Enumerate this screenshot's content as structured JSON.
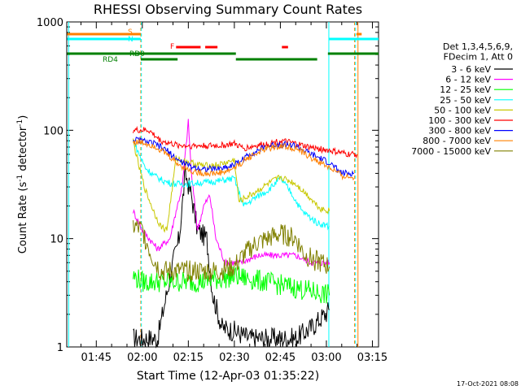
{
  "chart_data": {
    "type": "line",
    "title": "RHESSI Observing Summary Count Rates",
    "xlabel": "Start Time (12-Apr-03 01:35:22)",
    "ylabel_main": "Count Rate (s",
    "ylabel_sup1": "-1",
    "ylabel_mid": " detector",
    "ylabel_sup2": "-1",
    "ylabel_end": ")",
    "ylim": [
      1,
      1000
    ],
    "yscale": "log",
    "xlim_minutes": [
      95.37,
      197
    ],
    "x_ticks": [
      {
        "minute": 105,
        "label": "01:45"
      },
      {
        "minute": 120,
        "label": "02:00"
      },
      {
        "minute": 135,
        "label": "02:15"
      },
      {
        "minute": 150,
        "label": "02:30"
      },
      {
        "minute": 165,
        "label": "02:45"
      },
      {
        "minute": 180,
        "label": "03:00"
      },
      {
        "minute": 195,
        "label": "03:15"
      }
    ],
    "y_ticks": [
      {
        "value": 1,
        "label": "1"
      },
      {
        "value": 10,
        "label": "10"
      },
      {
        "value": 100,
        "label": "100"
      },
      {
        "value": 1000,
        "label": "1000"
      }
    ],
    "legend_header": [
      "Det 1,3,4,5,6,9,",
      "FDecim 1, Att 0"
    ],
    "legend_position": "right",
    "flags": [
      {
        "label": "S",
        "color": "#ff8000"
      },
      {
        "label": "N",
        "color": "#00ffff"
      },
      {
        "label": "F",
        "color": "#ff0000"
      },
      {
        "label": "RD0",
        "color": "#008000"
      },
      {
        "label": "RD4",
        "color": "#008000"
      }
    ],
    "series": [
      {
        "name": "3 - 6 keV",
        "color": "#000000",
        "values": [
          [
            117,
            1.2
          ],
          [
            125,
            1.2
          ],
          [
            130,
            6
          ],
          [
            132,
            10
          ],
          [
            134,
            40
          ],
          [
            136,
            25
          ],
          [
            138,
            12
          ],
          [
            141,
            10
          ],
          [
            143,
            3
          ],
          [
            146,
            1.5
          ],
          [
            150,
            1.4
          ],
          [
            155,
            1.2
          ],
          [
            160,
            1.2
          ],
          [
            165,
            1.2
          ],
          [
            170,
            1.2
          ],
          [
            175,
            1.5
          ],
          [
            181,
            2.2
          ]
        ]
      },
      {
        "name": "6 - 12 keV",
        "color": "#ff00ff",
        "values": [
          [
            117,
            18
          ],
          [
            120,
            12
          ],
          [
            125,
            8
          ],
          [
            129,
            10
          ],
          [
            131,
            18
          ],
          [
            133,
            30
          ],
          [
            135,
            120
          ],
          [
            136,
            40
          ],
          [
            138,
            12
          ],
          [
            140,
            20
          ],
          [
            142,
            25
          ],
          [
            144,
            10
          ],
          [
            147,
            6
          ],
          [
            152,
            6
          ],
          [
            158,
            7
          ],
          [
            165,
            7
          ],
          [
            170,
            7
          ],
          [
            175,
            6
          ],
          [
            181,
            6
          ]
        ]
      },
      {
        "name": "12 - 25 keV",
        "color": "#00ff00",
        "values": [
          [
            117,
            4.5
          ],
          [
            120,
            4
          ],
          [
            125,
            4
          ],
          [
            130,
            4
          ],
          [
            140,
            4
          ],
          [
            150,
            4.5
          ],
          [
            160,
            4
          ],
          [
            170,
            3.5
          ],
          [
            181,
            3
          ]
        ]
      },
      {
        "name": "25 - 50 keV",
        "color": "#00ffff",
        "values": [
          [
            117,
            80
          ],
          [
            119,
            60
          ],
          [
            121,
            45
          ],
          [
            124,
            38
          ],
          [
            127,
            34
          ],
          [
            130,
            32
          ],
          [
            135,
            32
          ],
          [
            140,
            33
          ],
          [
            145,
            34
          ],
          [
            150,
            36
          ],
          [
            153,
            20
          ],
          [
            157,
            24
          ],
          [
            161,
            28
          ],
          [
            165,
            36
          ],
          [
            168,
            28
          ],
          [
            172,
            18
          ],
          [
            177,
            14
          ],
          [
            181,
            13
          ]
        ]
      },
      {
        "name": "50 - 100 keV",
        "color": "#c8c800",
        "values": [
          [
            117,
            80
          ],
          [
            119,
            45
          ],
          [
            121,
            28
          ],
          [
            124,
            17
          ],
          [
            126,
            13
          ],
          [
            128,
            12
          ],
          [
            131,
            55
          ],
          [
            136,
            50
          ],
          [
            140,
            47
          ],
          [
            145,
            48
          ],
          [
            150,
            53
          ],
          [
            151.5,
            22
          ],
          [
            156,
            26
          ],
          [
            161,
            32
          ],
          [
            165,
            37
          ],
          [
            170,
            32
          ],
          [
            174,
            25
          ],
          [
            178,
            19
          ],
          [
            181,
            18
          ]
        ]
      },
      {
        "name": "100 - 300 keV",
        "color": "#ff0000",
        "values": [
          [
            117,
            100
          ],
          [
            122,
            100
          ],
          [
            126,
            80
          ],
          [
            131,
            73
          ],
          [
            135,
            72
          ],
          [
            140,
            72
          ],
          [
            145,
            72
          ],
          [
            150,
            75
          ],
          [
            153,
            68
          ],
          [
            157,
            72
          ],
          [
            161,
            75
          ],
          [
            165,
            80
          ],
          [
            170,
            75
          ],
          [
            174,
            70
          ],
          [
            181,
            65
          ],
          [
            187,
            60
          ],
          [
            190,
            60
          ]
        ]
      },
      {
        "name": "300 - 800 keV",
        "color": "#0000ff",
        "values": [
          [
            117,
            82
          ],
          [
            120,
            80
          ],
          [
            124,
            75
          ],
          [
            128,
            65
          ],
          [
            132,
            52
          ],
          [
            136,
            46
          ],
          [
            140,
            44
          ],
          [
            144,
            44
          ],
          [
            148,
            46
          ],
          [
            151,
            50
          ],
          [
            155,
            60
          ],
          [
            160,
            70
          ],
          [
            165,
            75
          ],
          [
            170,
            72
          ],
          [
            174,
            62
          ],
          [
            181,
            50
          ],
          [
            185,
            40
          ],
          [
            189,
            40
          ]
        ]
      },
      {
        "name": "800 - 7000 keV",
        "color": "#ff8000",
        "values": [
          [
            117,
            78
          ],
          [
            120,
            77
          ],
          [
            124,
            72
          ],
          [
            128,
            60
          ],
          [
            132,
            48
          ],
          [
            136,
            42
          ],
          [
            140,
            40
          ],
          [
            144,
            40
          ],
          [
            148,
            42
          ],
          [
            151,
            47
          ],
          [
            155,
            57
          ],
          [
            160,
            67
          ],
          [
            165,
            72
          ],
          [
            170,
            68
          ],
          [
            174,
            58
          ],
          [
            181,
            45
          ],
          [
            185,
            38
          ],
          [
            189,
            36
          ]
        ]
      },
      {
        "name": "7000 - 15000 keV",
        "color": "#808000",
        "values": [
          [
            117,
            13
          ],
          [
            120,
            12
          ],
          [
            123,
            7
          ],
          [
            126,
            5
          ],
          [
            130,
            5
          ],
          [
            135,
            5
          ],
          [
            140,
            5
          ],
          [
            145,
            5
          ],
          [
            150,
            5.5
          ],
          [
            153,
            7
          ],
          [
            157,
            9
          ],
          [
            161,
            10
          ],
          [
            165,
            11
          ],
          [
            170,
            10
          ],
          [
            173,
            7
          ],
          [
            178,
            6
          ],
          [
            181,
            5.5
          ]
        ]
      }
    ]
  },
  "footer": {
    "timestamp": "17-Oct-2021 08:08"
  }
}
